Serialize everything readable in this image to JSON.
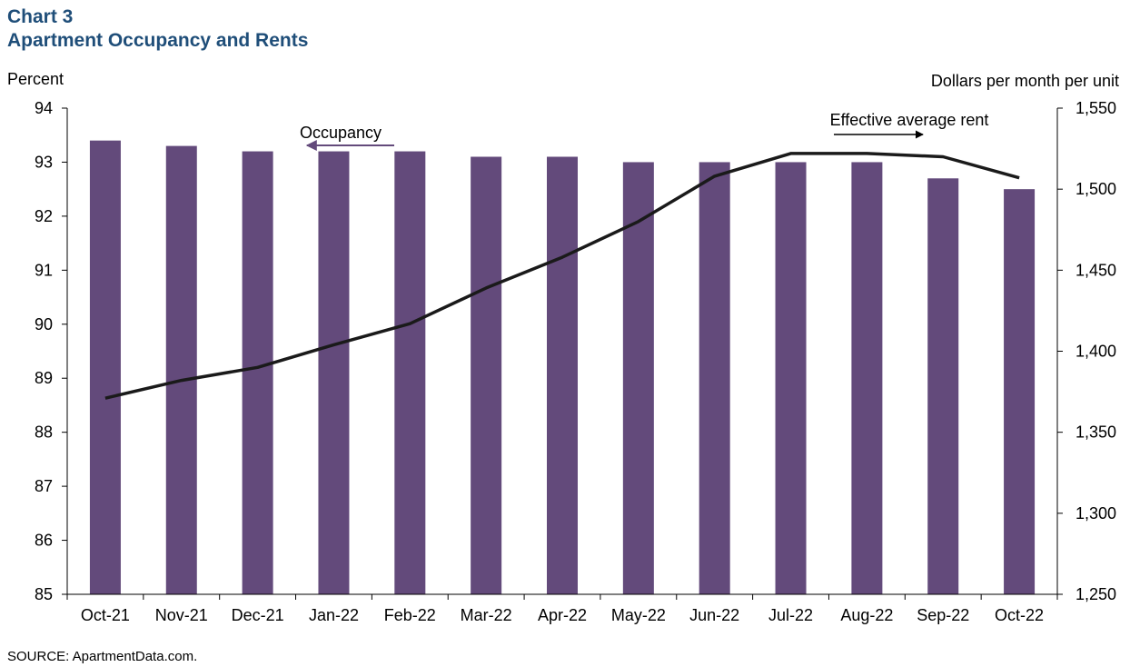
{
  "header": {
    "chart_label": "Chart 3",
    "title": "Apartment Occupancy and Rents"
  },
  "axes": {
    "y_left_title": "Percent",
    "y_right_title": "Dollars per month per unit"
  },
  "annotations": {
    "occupancy": "Occupancy",
    "rent": "Effective average rent"
  },
  "source": "SOURCE:  ApartmentData.com.",
  "colors": {
    "bar": "#634a7b",
    "line": "#1a1a1a",
    "occupancy_arrow": "#634a7b",
    "title": "#1f4e79"
  },
  "chart_data": {
    "type": "bar",
    "categories": [
      "Oct-21",
      "Nov-21",
      "Dec-21",
      "Jan-22",
      "Feb-22",
      "Mar-22",
      "Apr-22",
      "May-22",
      "Jun-22",
      "Jul-22",
      "Aug-22",
      "Sep-22",
      "Oct-22"
    ],
    "series": [
      {
        "name": "Occupancy",
        "type": "bar",
        "axis": "left",
        "values": [
          93.4,
          93.3,
          93.2,
          93.2,
          93.2,
          93.1,
          93.1,
          93.0,
          93.0,
          93.0,
          93.0,
          92.7,
          92.5
        ]
      },
      {
        "name": "Effective average rent",
        "type": "line",
        "axis": "right",
        "values": [
          1371,
          1382,
          1390,
          1404,
          1417,
          1439,
          1458,
          1480,
          1508,
          1522,
          1522,
          1520,
          1507
        ]
      }
    ],
    "y_left": {
      "min": 85,
      "max": 94,
      "step": 1,
      "tick_labels": [
        "85",
        "86",
        "87",
        "88",
        "89",
        "90",
        "91",
        "92",
        "93",
        "94"
      ]
    },
    "y_right": {
      "min": 1250,
      "max": 1550,
      "step": 50,
      "tick_labels": [
        "1,250",
        "1,300",
        "1,350",
        "1,400",
        "1,450",
        "1,500",
        "1,550"
      ]
    },
    "grid": false,
    "legend": "none"
  }
}
